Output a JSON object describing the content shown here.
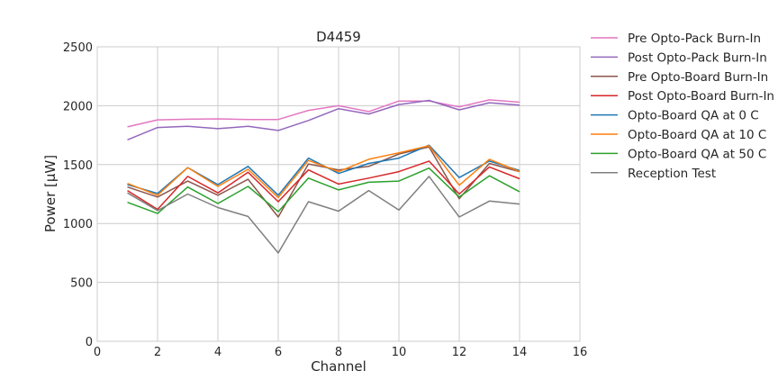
{
  "chart_data": {
    "type": "line",
    "title": "D4459",
    "xlabel": "Channel",
    "ylabel": "Power [μW]",
    "xlim": [
      0,
      16
    ],
    "ylim": [
      0,
      2500
    ],
    "xticks": [
      0,
      2,
      4,
      6,
      8,
      10,
      12,
      14,
      16
    ],
    "yticks": [
      0,
      500,
      1000,
      1500,
      2000,
      2500
    ],
    "grid": true,
    "legend_position": "outside-right",
    "x": [
      1,
      2,
      3,
      4,
      5,
      6,
      7,
      8,
      9,
      10,
      11,
      12,
      13,
      14
    ],
    "series": [
      {
        "name": "Pre Opto-Pack Burn-In",
        "color": "#e377c2",
        "values": [
          1820,
          1880,
          1885,
          1888,
          1883,
          1883,
          1960,
          2000,
          1950,
          2040,
          2040,
          1990,
          2050,
          2030
        ]
      },
      {
        "name": "Post Opto-Pack Burn-In",
        "color": "#9467bd",
        "values": [
          1710,
          1815,
          1825,
          1805,
          1825,
          1790,
          1875,
          1975,
          1930,
          2010,
          2045,
          1965,
          2025,
          2005
        ]
      },
      {
        "name": "Pre Opto-Board Burn-In",
        "color": "#8c564b",
        "values": [
          1310,
          1225,
          1360,
          1240,
          1375,
          1055,
          1505,
          1455,
          1485,
          1590,
          1650,
          1210,
          1510,
          1440
        ]
      },
      {
        "name": "Post Opto-Board Burn-In",
        "color": "#d62728",
        "values": [
          1280,
          1120,
          1400,
          1260,
          1435,
          1185,
          1455,
          1335,
          1385,
          1440,
          1530,
          1250,
          1480,
          1380
        ]
      },
      {
        "name": "Opto-Board QA at 0 C",
        "color": "#1f77b4",
        "values": [
          1330,
          1255,
          1475,
          1330,
          1485,
          1240,
          1555,
          1425,
          1510,
          1555,
          1665,
          1390,
          1530,
          1450
        ]
      },
      {
        "name": "Opto-Board QA at 10 C",
        "color": "#ff7f0e",
        "values": [
          1340,
          1240,
          1475,
          1315,
          1460,
          1220,
          1535,
          1440,
          1545,
          1600,
          1660,
          1325,
          1545,
          1440
        ]
      },
      {
        "name": "Opto-Board QA at 50 C",
        "color": "#2ca02c",
        "values": [
          1180,
          1085,
          1310,
          1170,
          1315,
          1100,
          1385,
          1285,
          1350,
          1360,
          1470,
          1225,
          1405,
          1270
        ]
      },
      {
        "name": "Reception Test",
        "color": "#7f7f7f",
        "values": [
          1260,
          1110,
          1250,
          1135,
          1060,
          750,
          1185,
          1105,
          1280,
          1115,
          1400,
          1055,
          1190,
          1165
        ]
      }
    ]
  }
}
